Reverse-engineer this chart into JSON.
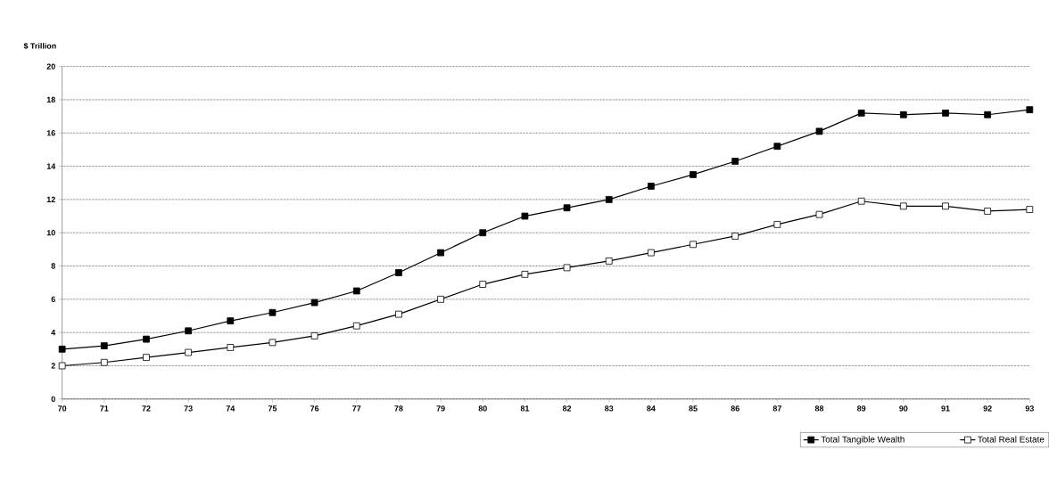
{
  "chart_data": {
    "type": "line",
    "ylabel": "$ Trillion",
    "categories": [
      "70",
      "71",
      "72",
      "73",
      "74",
      "75",
      "76",
      "77",
      "78",
      "79",
      "80",
      "81",
      "82",
      "83",
      "84",
      "85",
      "86",
      "87",
      "88",
      "89",
      "90",
      "91",
      "92",
      "93"
    ],
    "series": [
      {
        "name": "Total Tangible Wealth",
        "color": "#000000",
        "values": [
          3.0,
          3.2,
          3.6,
          4.1,
          4.7,
          5.2,
          5.8,
          6.5,
          7.6,
          8.8,
          10.0,
          11.0,
          11.5,
          12.0,
          12.8,
          13.5,
          14.3,
          15.2,
          16.1,
          17.2,
          17.1,
          17.2,
          17.1,
          17.4
        ]
      },
      {
        "name": "Total Real Estate",
        "color": "#000000",
        "values": [
          2.0,
          2.2,
          2.5,
          2.8,
          3.1,
          3.4,
          3.8,
          4.4,
          5.1,
          6.0,
          6.9,
          7.5,
          7.9,
          8.3,
          8.8,
          9.3,
          9.8,
          10.5,
          11.1,
          11.9,
          11.6,
          11.6,
          11.3,
          11.4
        ]
      }
    ],
    "ylim": [
      0,
      20
    ],
    "yticks": [
      0,
      2,
      4,
      6,
      8,
      10,
      12,
      14,
      16,
      18,
      20
    ],
    "grid": "y",
    "legend": "bottom right",
    "marker": "square",
    "line_style": "solid"
  }
}
